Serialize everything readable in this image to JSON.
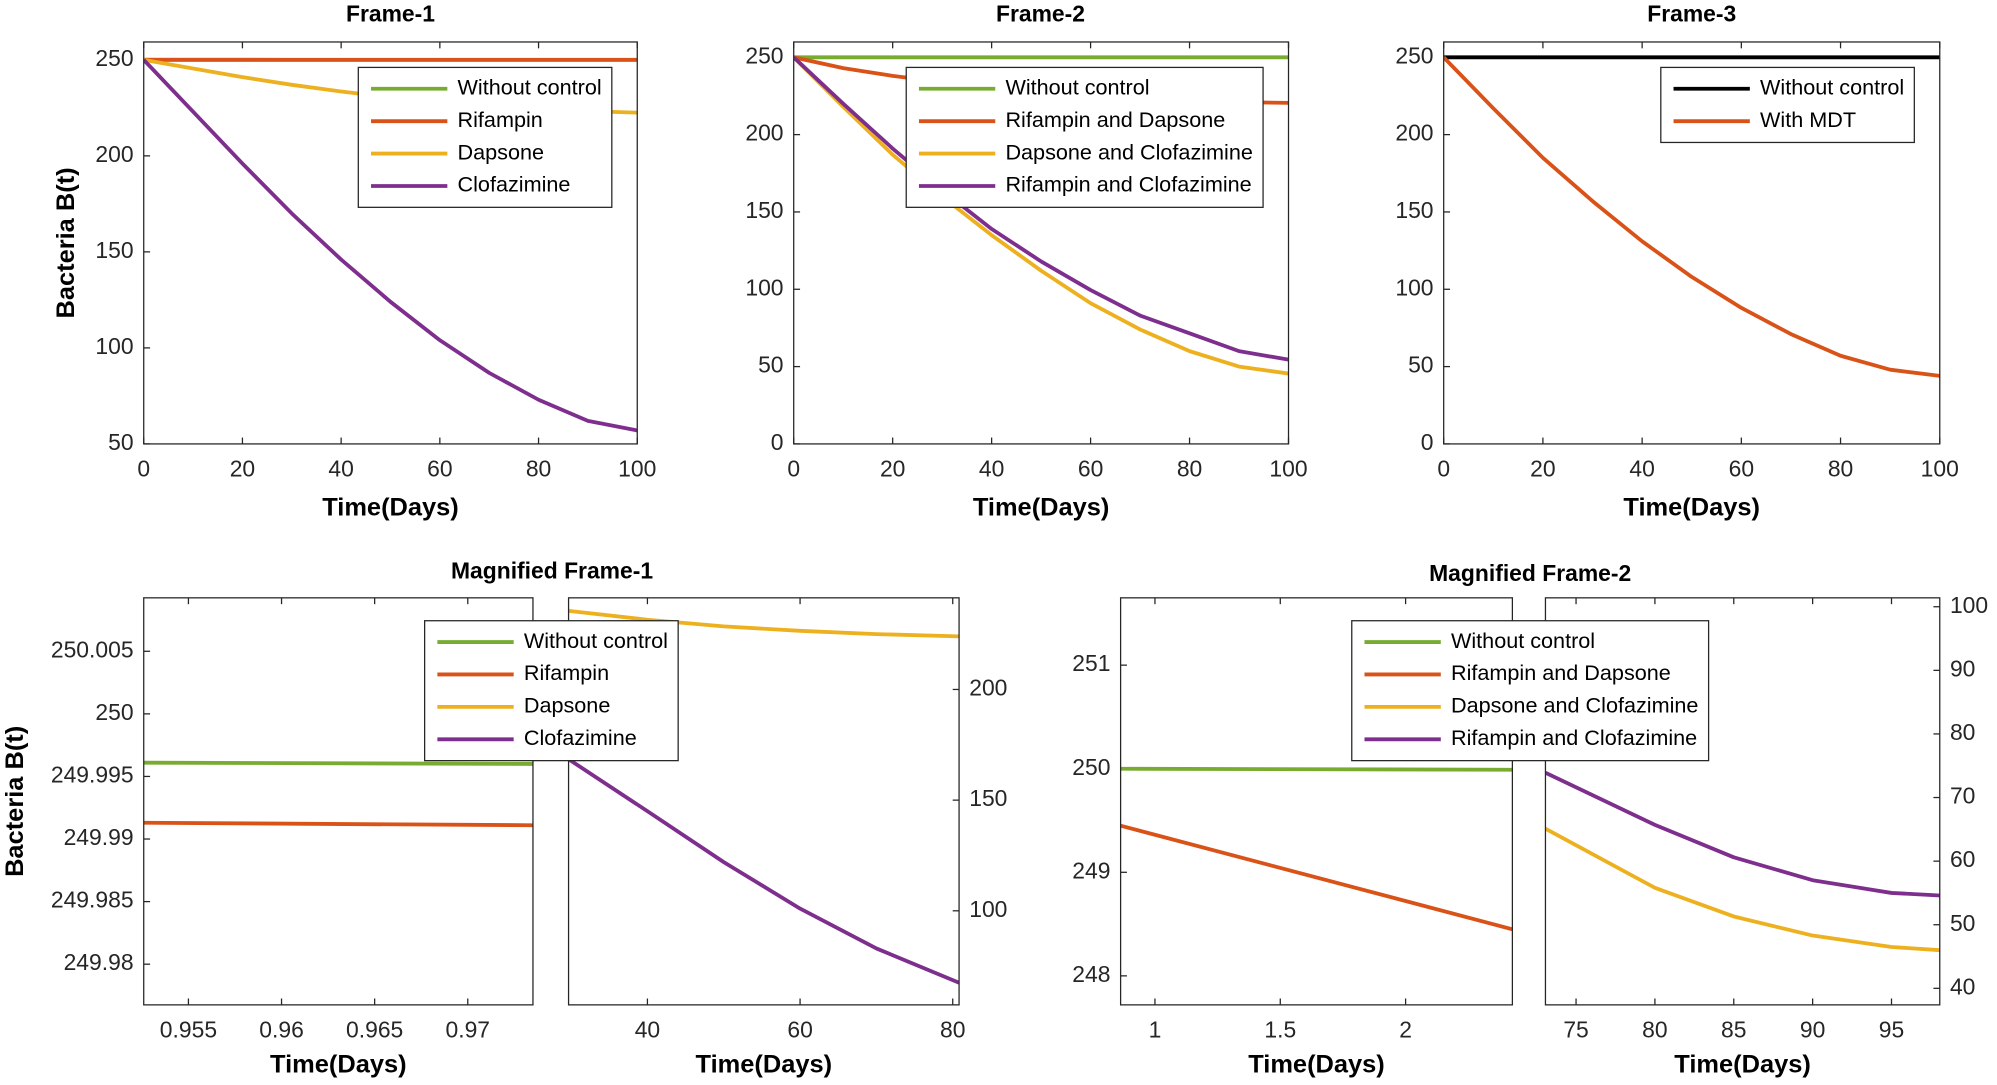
{
  "chart_data": [
    {
      "type": "line",
      "title": "Frame-1",
      "xlabel": "Time(Days)",
      "ylabel": "Bacteria B(t)",
      "x": [
        0,
        10,
        20,
        30,
        40,
        50,
        60,
        70,
        80,
        90,
        100
      ],
      "xlim": [
        0,
        100
      ],
      "xticks": [
        0,
        20,
        40,
        60,
        80,
        100
      ],
      "ylim": [
        50,
        259.3
      ],
      "yticks": [
        50,
        100,
        150,
        200,
        250
      ],
      "legend": "upper right",
      "series": [
        {
          "name": "Without control",
          "color": "#77ac30",
          "values": [
            250,
            250,
            250,
            250,
            250,
            250,
            250,
            250,
            250,
            250,
            250
          ]
        },
        {
          "name": "Rifampin",
          "color": "#d95319",
          "values": [
            250,
            249.999,
            249.998,
            249.997,
            249.996,
            249.995,
            249.994,
            249.993,
            249.992,
            249.991,
            249.99
          ]
        },
        {
          "name": "Dapsone",
          "color": "#edb120",
          "values": [
            250,
            245.5,
            241,
            237,
            233.5,
            230.5,
            228,
            226,
            224.5,
            223.3,
            222.5
          ]
        },
        {
          "name": "Clofazimine",
          "color": "#7e2f8e",
          "values": [
            250,
            223,
            196,
            170,
            146,
            124,
            104,
            87,
            73,
            62,
            57
          ]
        }
      ]
    },
    {
      "type": "line",
      "title": "Frame-2",
      "xlabel": "Time(Days)",
      "x": [
        0,
        10,
        20,
        30,
        40,
        50,
        60,
        70,
        80,
        90,
        100
      ],
      "xlim": [
        0,
        100
      ],
      "xticks": [
        0,
        20,
        40,
        60,
        80,
        100
      ],
      "ylim": [
        0,
        259.9
      ],
      "yticks": [
        0,
        50,
        100,
        150,
        200,
        250
      ],
      "legend": "upper right",
      "series": [
        {
          "name": "Without control",
          "color": "#77ac30",
          "values": [
            250,
            250,
            250,
            250,
            250,
            250,
            250,
            250,
            250,
            250,
            250
          ]
        },
        {
          "name": "Rifampin and Dapsone",
          "color": "#d95319",
          "values": [
            250,
            243,
            238,
            234,
            230,
            227,
            225,
            223.5,
            222,
            221,
            220.5
          ]
        },
        {
          "name": "Dapsone and Clofazimine",
          "color": "#edb120",
          "values": [
            250,
            218,
            187,
            160,
            135,
            112,
            91,
            74,
            60,
            50,
            45.5
          ]
        },
        {
          "name": "Rifampin and Clofazimine",
          "color": "#7e2f8e",
          "values": [
            250,
            220,
            191,
            164,
            139,
            118,
            99.5,
            83,
            71.5,
            60,
            54.5
          ]
        }
      ]
    },
    {
      "type": "line",
      "title": "Frame-3",
      "xlabel": "Time(Days)",
      "x": [
        0,
        10,
        20,
        30,
        40,
        50,
        60,
        70,
        80,
        90,
        100
      ],
      "xlim": [
        0,
        100
      ],
      "xticks": [
        0,
        20,
        40,
        60,
        80,
        100
      ],
      "ylim": [
        0,
        259.9
      ],
      "yticks": [
        0,
        50,
        100,
        150,
        200,
        250
      ],
      "legend": "upper right",
      "series": [
        {
          "name": "Without control",
          "color": "#000000",
          "values": [
            250,
            250,
            250,
            250,
            250,
            250,
            250,
            250,
            250,
            250,
            250
          ]
        },
        {
          "name": "With MDT",
          "color": "#d95319",
          "values": [
            250,
            217,
            185,
            157,
            131,
            108,
            88,
            71,
            57,
            48,
            44
          ]
        }
      ]
    },
    {
      "type": "line",
      "title": "Magnified Frame-1",
      "xlabel": "Time(Days)",
      "ylabel": "Bacteria B(t)",
      "legend": "upper center",
      "series": [
        {
          "name": "Without control",
          "color": "#77ac30"
        },
        {
          "name": "Rifampin",
          "color": "#d95319"
        },
        {
          "name": "Dapsone",
          "color": "#edb120"
        },
        {
          "name": "Clofazimine",
          "color": "#7e2f8e"
        }
      ],
      "panels": [
        {
          "x": [
            0.9526,
            0.9735
          ],
          "xlim": [
            0.9526,
            0.9735
          ],
          "xticks": [
            0.955,
            0.96,
            0.965,
            0.97
          ],
          "ylim": [
            249.97675,
            250.00927
          ],
          "yticks": [
            249.98,
            249.985,
            249.99,
            249.995,
            250,
            250.005
          ],
          "yaxis": "left",
          "series": [
            {
              "values": [
                249.9961,
                249.996
              ]
            },
            {
              "values": [
                249.9913,
                249.9911
              ]
            },
            {
              "values": [
                null,
                null
              ]
            },
            {
              "values": [
                null,
                null
              ]
            }
          ]
        },
        {
          "x": [
            29.67,
            40,
            50,
            60,
            70,
            80.83
          ],
          "xlim": [
            29.67,
            80.83
          ],
          "xticks": [
            40,
            60,
            80
          ],
          "ylim": [
            57.5,
            241.4
          ],
          "yticks": [
            100,
            150,
            200
          ],
          "yaxis": "right",
          "series": [
            {
              "values": [
                null,
                null,
                null,
                null,
                null,
                null
              ]
            },
            {
              "values": [
                null,
                null,
                null,
                null,
                null,
                null
              ]
            },
            {
              "values": [
                235.5,
                231.5,
                228.5,
                226.5,
                225,
                224
              ]
            },
            {
              "values": [
                168.5,
                145,
                122,
                101,
                83,
                67.5
              ]
            }
          ]
        }
      ]
    },
    {
      "type": "line",
      "title": "Magnified Frame-2",
      "xlabel": "Time(Days)",
      "legend": "upper center",
      "series": [
        {
          "name": "Without control",
          "color": "#77ac30"
        },
        {
          "name": "Rifampin and Dapsone",
          "color": "#d95319"
        },
        {
          "name": "Dapsone and Clofazimine",
          "color": "#edb120"
        },
        {
          "name": "Rifampin and Clofazimine",
          "color": "#7e2f8e"
        }
      ],
      "panels": [
        {
          "x": [
            0.863,
            2.426
          ],
          "xlim": [
            0.863,
            2.426
          ],
          "xticks": [
            1,
            1.5,
            2
          ],
          "ylim": [
            247.72,
            251.65
          ],
          "yticks": [
            248,
            249,
            250,
            251
          ],
          "yaxis": "left",
          "series": [
            {
              "values": [
                250,
                249.99
              ]
            },
            {
              "values": [
                249.45,
                248.45
              ]
            },
            {
              "values": [
                null,
                null
              ]
            },
            {
              "values": [
                null,
                null
              ]
            }
          ]
        },
        {
          "x": [
            73.06,
            80,
            85,
            90,
            95,
            98.06
          ],
          "xlim": [
            73.06,
            98.06
          ],
          "xticks": [
            75,
            80,
            85,
            90,
            95
          ],
          "ylim": [
            37.4,
            101.4
          ],
          "yticks": [
            40,
            50,
            60,
            70,
            80,
            90,
            100
          ],
          "yaxis": "right",
          "series": [
            {
              "values": [
                null,
                null,
                null,
                null,
                null,
                null
              ]
            },
            {
              "values": [
                null,
                null,
                null,
                null,
                null,
                null
              ]
            },
            {
              "values": [
                65.1,
                55.8,
                51.3,
                48.3,
                46.5,
                46
              ]
            },
            {
              "values": [
                73.9,
                65.7,
                60.6,
                57,
                55,
                54.6
              ]
            }
          ]
        }
      ]
    }
  ]
}
